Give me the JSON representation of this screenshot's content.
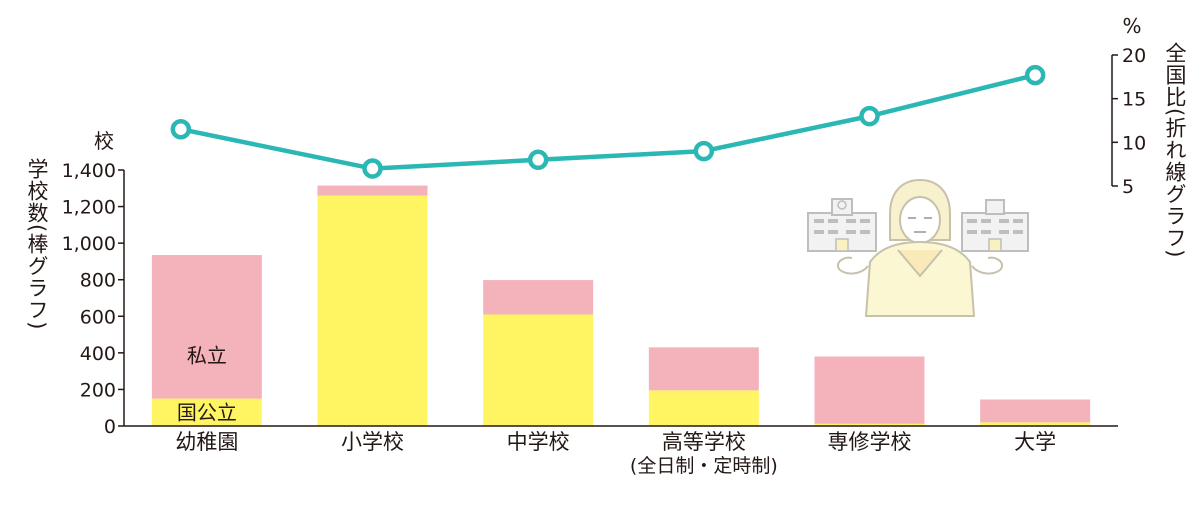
{
  "chart_data": {
    "type": "bar+line",
    "categories": [
      "幼稚園",
      "小学校",
      "中学校",
      "高等学校",
      "専修学校",
      "大学"
    ],
    "category_sublabels": [
      "",
      "",
      "",
      "(全日制・定時制)",
      "",
      ""
    ],
    "bar_series": [
      {
        "name": "国公立",
        "color": "#fff462",
        "values": [
          150,
          1260,
          610,
          195,
          12,
          20
        ]
      },
      {
        "name": "私立",
        "color": "#f4b2bb",
        "values": [
          785,
          55,
          188,
          235,
          368,
          125
        ]
      }
    ],
    "bar_annotations": [
      "私立",
      "国公立"
    ],
    "line_series": {
      "color": "#2bb7b3",
      "values": [
        11.5,
        7.0,
        8.0,
        9.0,
        13.0,
        17.7
      ]
    },
    "y_left": {
      "label": "学校数(棒グラフ)",
      "unit": "校",
      "ylim": [
        0,
        1400
      ],
      "ticks": [
        0,
        200,
        400,
        600,
        800,
        1000,
        1200,
        1400
      ],
      "tick_labels": [
        "0",
        "200",
        "400",
        "600",
        "800",
        "1,000",
        "1,200",
        "1,400"
      ]
    },
    "y_right": {
      "label": "全国比(折れ線グラフ)",
      "unit": "%",
      "ylim": [
        5,
        20
      ],
      "ticks": [
        5,
        10,
        15,
        20
      ],
      "tick_labels": [
        "5",
        "10",
        "15",
        "20"
      ]
    },
    "grid": false
  },
  "illustration": {
    "icons": [
      "school-building-icon",
      "student-girl-icon",
      "school-building-icon"
    ]
  }
}
